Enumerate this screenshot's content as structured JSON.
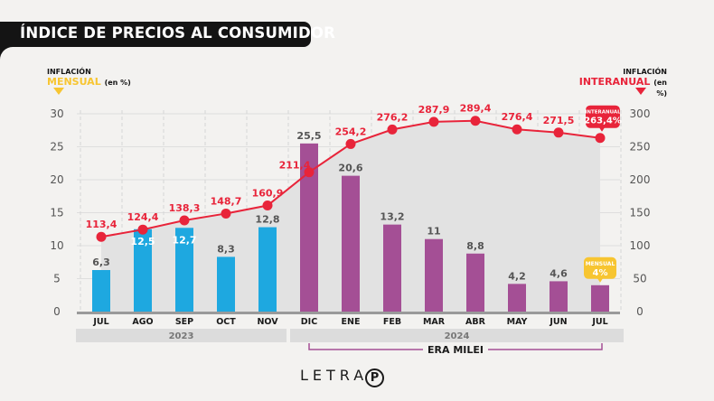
{
  "header": {
    "title": "ÍNDICE DE PRECIOS AL CONSUMIDOR"
  },
  "legend_left": {
    "line1": "INFLACIÓN",
    "line2": "MENSUAL",
    "unit": "(en %)"
  },
  "legend_right": {
    "line1": "INFLACIÓN",
    "line2": "INTERANUAL",
    "unit": "(en %)"
  },
  "colors": {
    "bar_2023": "#1ea8e0",
    "bar_milei": "#a44f95",
    "line": "#e8243a",
    "mensual_badge": "#f7c531",
    "area": "#e2e2e2",
    "year_band": "#dcdcdc"
  },
  "callouts": {
    "interanual": {
      "label": "INTERANUAL",
      "value": "263,4%"
    },
    "mensual": {
      "label": "MENSUAL",
      "value": "4%"
    }
  },
  "years": [
    {
      "label": "2023"
    },
    {
      "label": "2024"
    }
  ],
  "era": {
    "label": "ERA MILEI"
  },
  "footer": {
    "logo_text": "LETRA",
    "logo_mark": "P"
  },
  "chart_data": {
    "type": "bar",
    "title": "ÍNDICE DE PRECIOS AL CONSUMIDOR",
    "categories": [
      "JUL",
      "AGO",
      "SEP",
      "OCT",
      "NOV",
      "DIC",
      "ENE",
      "FEB",
      "MAR",
      "ABR",
      "MAY",
      "JUN",
      "JUL"
    ],
    "series": [
      {
        "name": "Inflación mensual (en %)",
        "type": "bar",
        "axis": "left",
        "values": [
          6.3,
          12.5,
          12.7,
          8.3,
          12.8,
          25.5,
          20.6,
          13.2,
          11,
          8.8,
          4.2,
          4.6,
          4.0
        ],
        "labels": [
          "6,3",
          "12,5",
          "12,7",
          "8,3",
          "12,8",
          "25,5",
          "20,6",
          "13,2",
          "11",
          "8,8",
          "4,2",
          "4,6",
          ""
        ],
        "group": [
          "2023",
          "2023",
          "2023",
          "2023",
          "2023",
          "milei",
          "milei",
          "milei",
          "milei",
          "milei",
          "milei",
          "milei",
          "milei"
        ]
      },
      {
        "name": "Inflación interanual (en %)",
        "type": "line",
        "axis": "right",
        "values": [
          113.4,
          124.4,
          138.3,
          148.7,
          160.9,
          211.4,
          254.2,
          276.2,
          287.9,
          289.4,
          276.4,
          271.5,
          263.4
        ],
        "labels": [
          "113,4",
          "124,4",
          "138,3",
          "148,7",
          "160,9",
          "211,4",
          "254,2",
          "276,2",
          "287,9",
          "289,4",
          "276,4",
          "271,5",
          ""
        ]
      }
    ],
    "y_left": {
      "label": "INFLACIÓN MENSUAL (en %)",
      "range": [
        0,
        30
      ],
      "ticks": [
        "0",
        "5",
        "10",
        "15",
        "20",
        "25",
        "30"
      ]
    },
    "y_right": {
      "label": "INFLACIÓN INTERANUAL (en %)",
      "range": [
        0,
        300
      ],
      "ticks": [
        "0",
        "50",
        "100",
        "150",
        "200",
        "250",
        "300"
      ]
    },
    "grid": true,
    "year_groups": [
      {
        "label": "2023",
        "from": 0,
        "to": 4
      },
      {
        "label": "2024",
        "from": 5,
        "to": 12
      }
    ],
    "annotation": {
      "label": "ERA MILEI",
      "from": 5,
      "to": 12
    }
  }
}
